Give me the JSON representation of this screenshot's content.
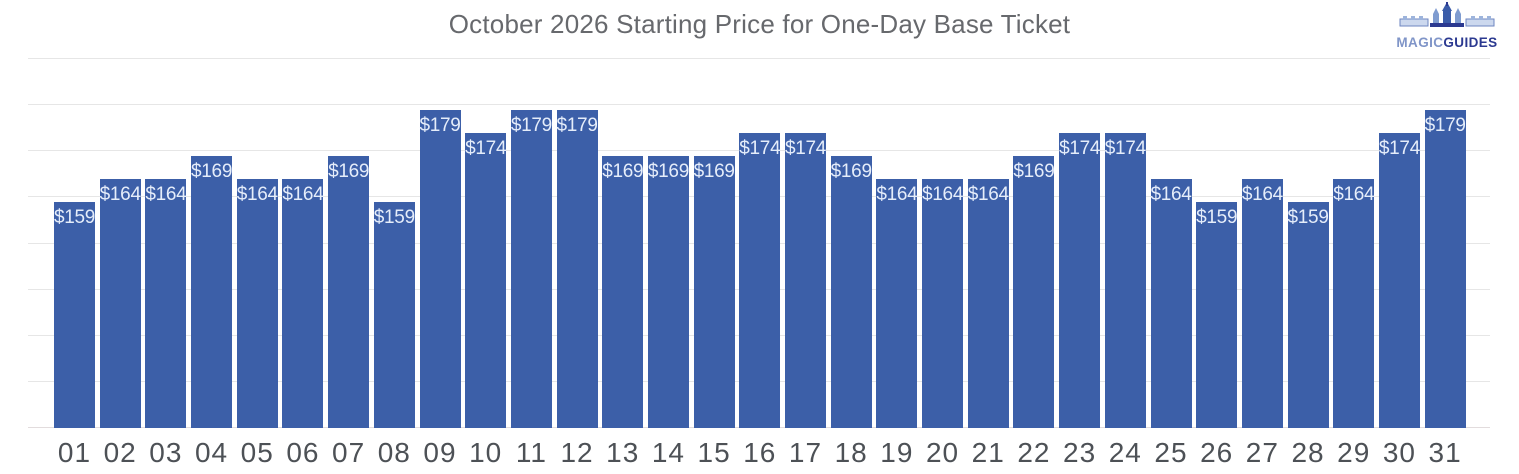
{
  "header": {
    "title": "October 2026 Starting Price for One-Day Base Ticket",
    "logo": {
      "magic": "MAGIC",
      "guides": "GUIDES"
    }
  },
  "chart_data": {
    "type": "bar",
    "title": "October 2026 Starting Price for One-Day Base Ticket",
    "categories": [
      "01",
      "02",
      "03",
      "04",
      "05",
      "06",
      "07",
      "08",
      "09",
      "10",
      "11",
      "12",
      "13",
      "14",
      "15",
      "16",
      "17",
      "18",
      "19",
      "20",
      "21",
      "22",
      "23",
      "24",
      "25",
      "26",
      "27",
      "28",
      "29",
      "30",
      "31"
    ],
    "values": [
      159,
      164,
      164,
      169,
      164,
      164,
      169,
      159,
      179,
      174,
      179,
      179,
      169,
      169,
      169,
      174,
      174,
      169,
      164,
      164,
      164,
      169,
      174,
      174,
      164,
      159,
      164,
      159,
      164,
      174,
      179
    ],
    "labels": [
      "$159",
      "$164",
      "$164",
      "$169",
      "$164",
      "$164",
      "$169",
      "$159",
      "$179",
      "$174",
      "$179",
      "$179",
      "$169",
      "$169",
      "$169",
      "$174",
      "$174",
      "$169",
      "$164",
      "$164",
      "$164",
      "$169",
      "$174",
      "$174",
      "$164",
      "$159",
      "$164",
      "$159",
      "$164",
      "$174",
      "$179"
    ],
    "value_prefix": "$",
    "xlabel": "",
    "ylabel": "",
    "ylim": [
      110,
      190
    ],
    "ytick_step": 10,
    "grid": true,
    "legend": "none",
    "colors": {
      "bar": "#3c5fa8",
      "bar_label": "#e5edfa",
      "grid": "#e6e6e6",
      "baseline": "#e2dcdd",
      "title": "#67696d",
      "axis_label": "#4d5156",
      "logo_magic": "#8095c8",
      "logo_guides": "#2b3990"
    }
  }
}
